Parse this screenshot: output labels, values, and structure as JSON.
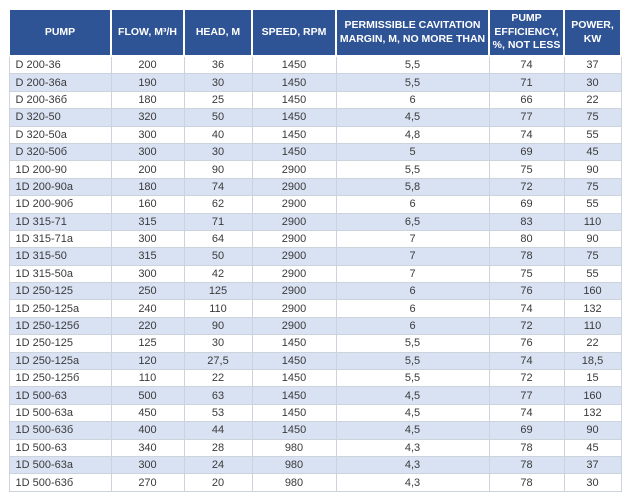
{
  "chart_data": {
    "type": "table",
    "title": "Pump specifications table",
    "columns": [
      "PUMP",
      "FLOW, M³/H",
      "HEAD, M",
      "SPEED, RPM",
      "PERMISSIBLE CAVITATION MARGIN, M, NO MORE THAN",
      "PUMP EFFICIENCY, %, NOT LESS",
      "POWER, KW"
    ],
    "column_keys": [
      "pump",
      "flow",
      "head",
      "speed",
      "cavitation-margin",
      "efficiency",
      "power"
    ],
    "rows": [
      [
        "D 200-36",
        "200",
        "36",
        "1450",
        "5,5",
        "74",
        "37"
      ],
      [
        "D 200-36a",
        "190",
        "30",
        "1450",
        "5,5",
        "71",
        "30"
      ],
      [
        "D 200-36б",
        "180",
        "25",
        "1450",
        "6",
        "66",
        "22"
      ],
      [
        "D 320-50",
        "320",
        "50",
        "1450",
        "4,5",
        "77",
        "75"
      ],
      [
        "D 320-50a",
        "300",
        "40",
        "1450",
        "4,8",
        "74",
        "55"
      ],
      [
        "D 320-50б",
        "300",
        "30",
        "1450",
        "5",
        "69",
        "45"
      ],
      [
        "1D 200-90",
        "200",
        "90",
        "2900",
        "5,5",
        "75",
        "90"
      ],
      [
        "1D 200-90a",
        "180",
        "74",
        "2900",
        "5,8",
        "72",
        "75"
      ],
      [
        "1D 200-90б",
        "160",
        "62",
        "2900",
        "6",
        "69",
        "55"
      ],
      [
        "1D 315-71",
        "315",
        "71",
        "2900",
        "6,5",
        "83",
        "110"
      ],
      [
        "1D 315-71a",
        "300",
        "64",
        "2900",
        "7",
        "80",
        "90"
      ],
      [
        "1D 315-50",
        "315",
        "50",
        "2900",
        "7",
        "78",
        "75"
      ],
      [
        "1D 315-50a",
        "300",
        "42",
        "2900",
        "7",
        "75",
        "55"
      ],
      [
        "1D 250-125",
        "250",
        "125",
        "2900",
        "6",
        "76",
        "160"
      ],
      [
        "1D 250-125a",
        "240",
        "110",
        "2900",
        "6",
        "74",
        "132"
      ],
      [
        "1D 250-125б",
        "220",
        "90",
        "2900",
        "6",
        "72",
        "110"
      ],
      [
        "1D 250-125",
        "125",
        "30",
        "1450",
        "5,5",
        "76",
        "22"
      ],
      [
        "1D 250-125a",
        "120",
        "27,5",
        "1450",
        "5,5",
        "74",
        "18,5"
      ],
      [
        "1D 250-125б",
        "110",
        "22",
        "1450",
        "5,5",
        "72",
        "15"
      ],
      [
        "1D 500-63",
        "500",
        "63",
        "1450",
        "4,5",
        "77",
        "160"
      ],
      [
        "1D 500-63a",
        "450",
        "53",
        "1450",
        "4,5",
        "74",
        "132"
      ],
      [
        "1D 500-63б",
        "400",
        "44",
        "1450",
        "4,5",
        "69",
        "90"
      ],
      [
        "1D 500-63",
        "340",
        "28",
        "980",
        "4,3",
        "78",
        "45"
      ],
      [
        "1D 500-63a",
        "300",
        "24",
        "980",
        "4,3",
        "78",
        "37"
      ],
      [
        "1D 500-63б",
        "270",
        "20",
        "980",
        "4,3",
        "78",
        "30"
      ]
    ]
  },
  "colors": {
    "header_bg": "#2F5496",
    "header_text": "#FFFFFF",
    "row_stripe": "#D9E2F3",
    "row_plain": "#FFFFFF",
    "body_text": "#3A3A3A",
    "grid_line": "#CCD3DC"
  }
}
